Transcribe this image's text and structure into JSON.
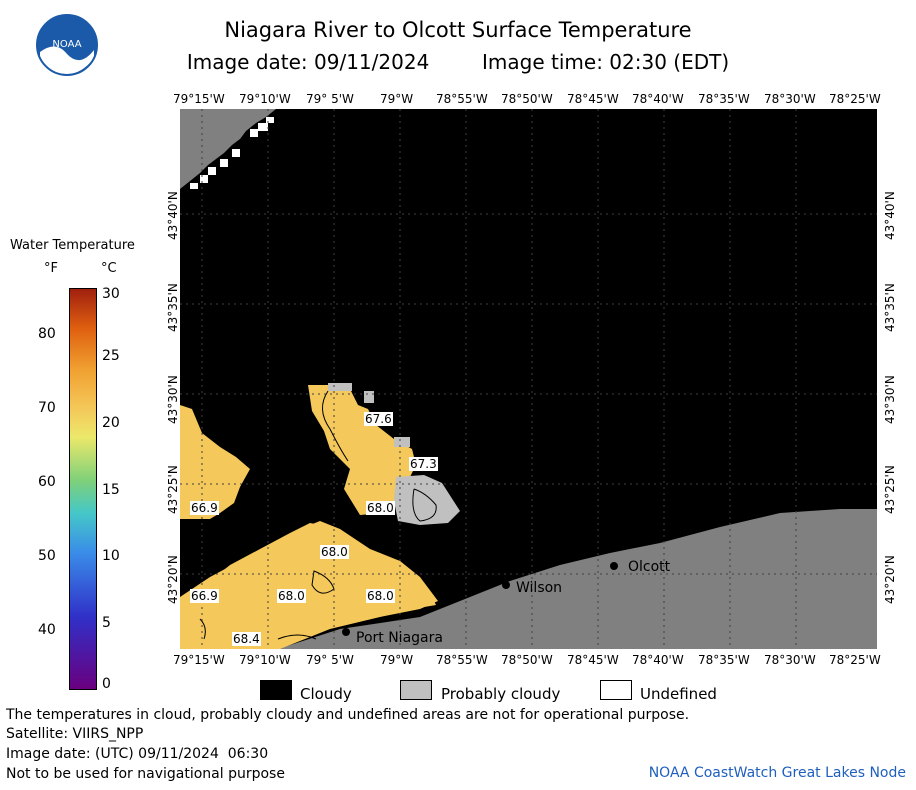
{
  "header": {
    "title": "Niagara River to Olcott Surface Temperature",
    "image_date_label": "Image date: 09/11/2024",
    "image_time_label": "Image time: 02:30 (EDT)"
  },
  "logo": {
    "text": "NOAA"
  },
  "axes": {
    "lon_ticks": [
      "79°15'W",
      "79°10'W",
      "79° 5'W",
      "79°W",
      "78°55'W",
      "78°50'W",
      "78°45'W",
      "78°40'W",
      "78°35'W",
      "78°30'W",
      "78°25'W"
    ],
    "lat_ticks": [
      "43°40'N",
      "43°35'N",
      "43°30'N",
      "43°25'N",
      "43°20'N"
    ]
  },
  "colorbar": {
    "title": "Water Temperature",
    "unit_f": "°F",
    "unit_c": "°C",
    "f_ticks": [
      "80",
      "70",
      "60",
      "50",
      "40"
    ],
    "c_ticks": [
      "30",
      "25",
      "20",
      "15",
      "10",
      "5",
      "0"
    ]
  },
  "map_labels": {
    "places": [
      "Olcott",
      "Wilson",
      "Port Niagara"
    ],
    "temps": [
      "67.6",
      "67.3",
      "68.0",
      "66.9",
      "68.0",
      "66.9",
      "68.0",
      "68.0",
      "68.4"
    ]
  },
  "legend": {
    "cloudy": "Cloudy",
    "probably_cloudy": "Probably cloudy",
    "undefined": "Undefined"
  },
  "footer": {
    "note": "The temperatures in cloud, probably cloudy and undefined areas are not for operational purpose.",
    "satellite": "Satellite: VIIRS_NPP",
    "utc_date": "Image date: (UTC) 09/11/2024  06:30",
    "nav_warning": "Not to be used for navigational purpose",
    "credit": "NOAA CoastWatch Great Lakes Node"
  },
  "colors": {
    "cloud": "#000000",
    "land": "#808080",
    "probably_cloudy": "#c0c0c0",
    "water_68F": "#f4c85a",
    "credit": "#1f5fbf"
  }
}
